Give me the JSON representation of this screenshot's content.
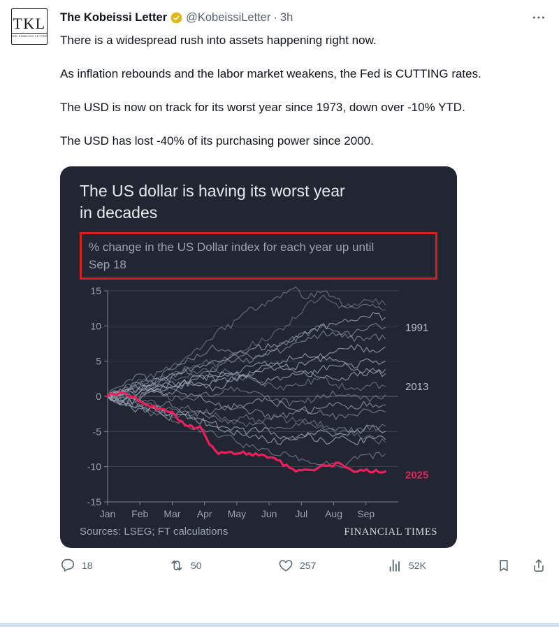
{
  "tweet": {
    "author_name": "The Kobeissi Letter",
    "handle": "@KobeissiLetter",
    "separator": "·",
    "timestamp": "3h",
    "avatar": {
      "text": "TKL",
      "subtext": "THE KOBEISSI LETTER"
    },
    "paragraphs": [
      "There is a widespread rush into assets happening right now.",
      "As inflation rebounds and the labor market weakens, the Fed is CUTTING rates.",
      "The USD is now on track for its worst year since 1973, down over -10% YTD.",
      "The USD has lost -40% of its purchasing power since 2000."
    ],
    "engagement": {
      "replies": "18",
      "reposts": "50",
      "likes": "257",
      "views": "52K"
    }
  },
  "chart": {
    "title_line1": "The US dollar is having its worst year",
    "title_line2": "in decades",
    "subtitle_line1": "% change in the US Dollar index for each year up until",
    "subtitle_line2": "Sep 18",
    "source": "Sources: LSEG; FT calculations",
    "brand": "FINANCIAL TIMES",
    "colors": {
      "background": "#222633",
      "highlight": "#ed1e5b",
      "gridline": "#3a4150",
      "zero_line": "#5a6375",
      "axis": "#7b8494",
      "text": "#99a3b1",
      "title": "#e8eaee",
      "annotation_box": "#d6201c",
      "background_lines": "#97a3b5"
    }
  },
  "chart_data": {
    "type": "line",
    "title": "The US dollar is having its worst year in decades",
    "subtitle": "% change in the US Dollar index for each year up until Sep 18",
    "x_tick_labels": [
      "Jan",
      "Feb",
      "Mar",
      "Apr",
      "May",
      "Jun",
      "Jul",
      "Aug",
      "Sep"
    ],
    "y_ticks": [
      15,
      10,
      5,
      0,
      -5,
      -10,
      -15
    ],
    "ylim": [
      -15,
      15
    ],
    "x_end_fraction": 0.955,
    "annotations": [
      {
        "label": "1991",
        "y": 9.8,
        "color": "#b6bdc8"
      },
      {
        "label": "2013",
        "y": 1.4,
        "color": "#b6bdc8"
      },
      {
        "label": "2025",
        "y": -11.2,
        "color": "#ed1e5b"
      }
    ],
    "highlight_series": {
      "name": "2025",
      "color": "#ed1e5b",
      "values": [
        0,
        0.5,
        -0.5,
        -1.5,
        -2,
        -4,
        -4.5,
        -8,
        -8,
        -8,
        -8.5,
        -9,
        -10.5,
        -10.5,
        -10,
        -9.5,
        -10.5,
        -10.5,
        -10.7
      ]
    },
    "background_series": [
      [
        0,
        1,
        2,
        2.5,
        3,
        4,
        5,
        4.5,
        6,
        7,
        8,
        9,
        11,
        13,
        14,
        12.5,
        13,
        14,
        13
      ],
      [
        0,
        0.5,
        1.5,
        2,
        3,
        3.5,
        3,
        4,
        5,
        6,
        5.5,
        6.5,
        7,
        8,
        9,
        8.5,
        9,
        10,
        9.8
      ],
      [
        0,
        0.5,
        1,
        2,
        2.5,
        3,
        3.5,
        4,
        3,
        2.5,
        2,
        1,
        1.5,
        2,
        2.5,
        1.5,
        1,
        1.5,
        1.4
      ],
      [
        0,
        -0.5,
        0.5,
        1,
        1.5,
        2,
        3,
        2.5,
        3.5,
        4,
        5,
        4.5,
        5.5,
        6,
        5.5,
        6.5,
        7,
        6.5,
        7
      ],
      [
        0,
        1,
        0.5,
        1.5,
        2,
        1.5,
        2.5,
        3,
        3.5,
        3,
        4,
        4.5,
        4,
        5,
        5.5,
        5,
        4.5,
        5,
        5
      ],
      [
        0,
        -1,
        -0.5,
        0.5,
        1,
        2,
        1.5,
        2,
        2.5,
        3,
        2,
        2.5,
        3,
        3.5,
        3,
        2.5,
        3,
        3.5,
        3.2
      ],
      [
        0,
        0.5,
        1,
        0.5,
        0,
        -0.5,
        0,
        0.5,
        1,
        0.5,
        0,
        -0.5,
        -1,
        -0.5,
        0,
        0.5,
        0,
        -0.5,
        0.2
      ],
      [
        0,
        -0.5,
        -1,
        -1.5,
        -1,
        -2,
        -2.5,
        -2,
        -1.5,
        -2,
        -2.5,
        -3,
        -2.5,
        -2,
        -2.5,
        -3,
        -2.5,
        -2,
        -2.2
      ],
      [
        0,
        0.5,
        -0.5,
        -1,
        -2,
        -1.5,
        -2.5,
        -3,
        -3.5,
        -3,
        -4,
        -4.5,
        -4,
        -3.5,
        -4,
        -4.5,
        -5,
        -4.5,
        -4.2
      ],
      [
        0,
        -1,
        -2,
        -1.5,
        -2.5,
        -3,
        -3.5,
        -4,
        -4.5,
        -5,
        -4.5,
        -5.5,
        -6,
        -5.5,
        -6.5,
        -6,
        -6.5,
        -6,
        -6.1
      ],
      [
        0,
        -0.5,
        -1.5,
        -2.5,
        -3,
        -4,
        -5,
        -5.5,
        -6,
        -7,
        -7.5,
        -8,
        -8.5,
        -9,
        -9.5,
        -10,
        -9,
        -8.5,
        -8.2
      ],
      [
        0,
        2,
        3,
        2,
        4,
        5,
        6,
        7,
        6,
        5,
        6,
        7,
        8,
        9,
        10,
        9,
        8,
        8.5,
        8.2
      ],
      [
        0,
        1,
        2,
        1.5,
        1,
        0.5,
        0,
        -1,
        -1.5,
        -1,
        -0.5,
        -1,
        -1.5,
        -2,
        -1.5,
        -1,
        -1.5,
        -1,
        -1.2
      ],
      [
        0,
        0.5,
        1,
        1.5,
        2.5,
        3.5,
        4.5,
        5,
        6,
        6.5,
        7,
        7.5,
        8,
        9,
        10,
        10.5,
        11,
        11.5,
        11.2
      ],
      [
        0,
        -1,
        -1.5,
        -2,
        -3,
        -2.5,
        -3.5,
        -4,
        -5,
        -5.5,
        -6,
        -6.5,
        -6,
        -5.5,
        -5,
        -5.5,
        -5,
        -4.5,
        -5
      ],
      [
        0,
        1,
        2,
        3,
        4,
        5,
        7,
        9,
        10,
        12,
        13,
        14,
        15.3,
        14,
        15,
        13.5,
        12.5,
        13,
        12.3
      ],
      [
        0,
        -0.5,
        0,
        1,
        0.5,
        1.5,
        2,
        1,
        2,
        3,
        3.5,
        4,
        3.5,
        3,
        4,
        4.5,
        4,
        3.5,
        3.8
      ],
      [
        0,
        0.5,
        -1,
        -2,
        -2.5,
        -3,
        -2,
        -2.5,
        -3.5,
        -4,
        -3.5,
        -3,
        -3.5,
        -4,
        -4.5,
        -5,
        -5.5,
        -6,
        -6.5
      ]
    ]
  }
}
